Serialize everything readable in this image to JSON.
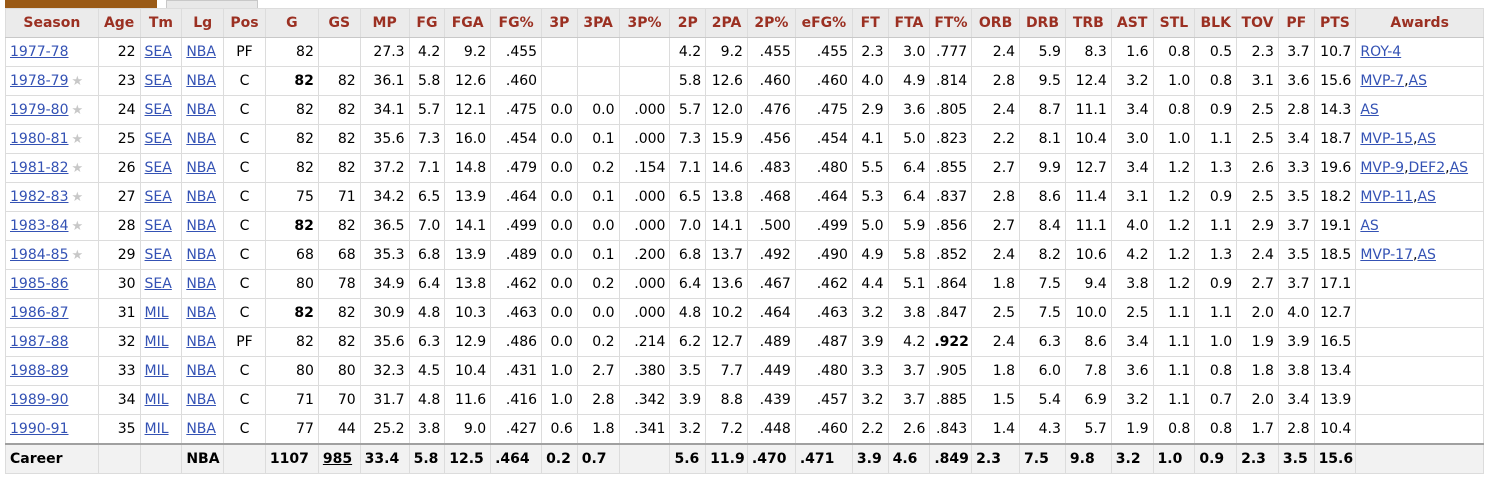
{
  "columns": [
    "Season",
    "Age",
    "Tm",
    "Lg",
    "Pos",
    "G",
    "GS",
    "MP",
    "FG",
    "FGA",
    "FG%",
    "3P",
    "3PA",
    "3P%",
    "2P",
    "2PA",
    "2P%",
    "eFG%",
    "FT",
    "FTA",
    "FT%",
    "ORB",
    "DRB",
    "TRB",
    "AST",
    "STL",
    "BLK",
    "TOV",
    "PF",
    "PTS",
    "Awards"
  ],
  "rows": [
    {
      "season": "1977-78",
      "star": false,
      "age": "22",
      "tm": "SEA",
      "lg": "NBA",
      "pos": "PF",
      "g": "82",
      "gs": "",
      "mp": "27.3",
      "fg": "4.2",
      "fga": "9.2",
      "fg_pct": ".455",
      "p3": "",
      "p3a": "",
      "p3_pct": "",
      "p2": "4.2",
      "p2a": "9.2",
      "p2_pct": ".455",
      "efg": ".455",
      "ft": "2.3",
      "fta": "3.0",
      "ft_pct": ".777",
      "orb": "2.4",
      "drb": "5.9",
      "trb": "8.3",
      "ast": "1.6",
      "stl": "0.8",
      "blk": "0.5",
      "tov": "2.3",
      "pf": "3.7",
      "pts": "10.7",
      "awards": [
        "ROY-4"
      ]
    },
    {
      "season": "1978-79",
      "star": true,
      "age": "23",
      "tm": "SEA",
      "lg": "NBA",
      "pos": "C",
      "g": "82",
      "g_bold": true,
      "gs": "82",
      "mp": "36.1",
      "fg": "5.8",
      "fga": "12.6",
      "fg_pct": ".460",
      "p3": "",
      "p3a": "",
      "p3_pct": "",
      "p2": "5.8",
      "p2a": "12.6",
      "p2_pct": ".460",
      "efg": ".460",
      "ft": "4.0",
      "fta": "4.9",
      "ft_pct": ".814",
      "orb": "2.8",
      "drb": "9.5",
      "trb": "12.4",
      "ast": "3.2",
      "stl": "1.0",
      "blk": "0.8",
      "tov": "3.1",
      "pf": "3.6",
      "pts": "15.6",
      "awards": [
        "MVP-7",
        "AS"
      ]
    },
    {
      "season": "1979-80",
      "star": true,
      "age": "24",
      "tm": "SEA",
      "lg": "NBA",
      "pos": "C",
      "g": "82",
      "gs": "82",
      "mp": "34.1",
      "fg": "5.7",
      "fga": "12.1",
      "fg_pct": ".475",
      "p3": "0.0",
      "p3a": "0.0",
      "p3_pct": ".000",
      "p2": "5.7",
      "p2a": "12.0",
      "p2_pct": ".476",
      "efg": ".475",
      "ft": "2.9",
      "fta": "3.6",
      "ft_pct": ".805",
      "orb": "2.4",
      "drb": "8.7",
      "trb": "11.1",
      "ast": "3.4",
      "stl": "0.8",
      "blk": "0.9",
      "tov": "2.5",
      "pf": "2.8",
      "pts": "14.3",
      "awards": [
        "AS"
      ]
    },
    {
      "season": "1980-81",
      "star": true,
      "age": "25",
      "tm": "SEA",
      "lg": "NBA",
      "pos": "C",
      "g": "82",
      "gs": "82",
      "mp": "35.6",
      "fg": "7.3",
      "fga": "16.0",
      "fg_pct": ".454",
      "p3": "0.0",
      "p3a": "0.1",
      "p3_pct": ".000",
      "p2": "7.3",
      "p2a": "15.9",
      "p2_pct": ".456",
      "efg": ".454",
      "ft": "4.1",
      "fta": "5.0",
      "ft_pct": ".823",
      "orb": "2.2",
      "drb": "8.1",
      "trb": "10.4",
      "ast": "3.0",
      "stl": "1.0",
      "blk": "1.1",
      "tov": "2.5",
      "pf": "3.4",
      "pts": "18.7",
      "awards": [
        "MVP-15",
        "AS"
      ]
    },
    {
      "season": "1981-82",
      "star": true,
      "age": "26",
      "tm": "SEA",
      "lg": "NBA",
      "pos": "C",
      "g": "82",
      "gs": "82",
      "mp": "37.2",
      "fg": "7.1",
      "fga": "14.8",
      "fg_pct": ".479",
      "p3": "0.0",
      "p3a": "0.2",
      "p3_pct": ".154",
      "p2": "7.1",
      "p2a": "14.6",
      "p2_pct": ".483",
      "efg": ".480",
      "ft": "5.5",
      "fta": "6.4",
      "ft_pct": ".855",
      "orb": "2.7",
      "drb": "9.9",
      "trb": "12.7",
      "ast": "3.4",
      "stl": "1.2",
      "blk": "1.3",
      "tov": "2.6",
      "pf": "3.3",
      "pts": "19.6",
      "awards": [
        "MVP-9",
        "DEF2",
        "AS"
      ]
    },
    {
      "season": "1982-83",
      "star": true,
      "age": "27",
      "tm": "SEA",
      "lg": "NBA",
      "pos": "C",
      "g": "75",
      "gs": "71",
      "mp": "34.2",
      "fg": "6.5",
      "fga": "13.9",
      "fg_pct": ".464",
      "p3": "0.0",
      "p3a": "0.1",
      "p3_pct": ".000",
      "p2": "6.5",
      "p2a": "13.8",
      "p2_pct": ".468",
      "efg": ".464",
      "ft": "5.3",
      "fta": "6.4",
      "ft_pct": ".837",
      "orb": "2.8",
      "drb": "8.6",
      "trb": "11.4",
      "ast": "3.1",
      "stl": "1.2",
      "blk": "0.9",
      "tov": "2.5",
      "pf": "3.5",
      "pts": "18.2",
      "awards": [
        "MVP-11",
        "AS"
      ]
    },
    {
      "season": "1983-84",
      "star": true,
      "age": "28",
      "tm": "SEA",
      "lg": "NBA",
      "pos": "C",
      "g": "82",
      "g_bold": true,
      "gs": "82",
      "mp": "36.5",
      "fg": "7.0",
      "fga": "14.1",
      "fg_pct": ".499",
      "p3": "0.0",
      "p3a": "0.0",
      "p3_pct": ".000",
      "p2": "7.0",
      "p2a": "14.1",
      "p2_pct": ".500",
      "efg": ".499",
      "ft": "5.0",
      "fta": "5.9",
      "ft_pct": ".856",
      "orb": "2.7",
      "drb": "8.4",
      "trb": "11.1",
      "ast": "4.0",
      "stl": "1.2",
      "blk": "1.1",
      "tov": "2.9",
      "pf": "3.7",
      "pts": "19.1",
      "awards": [
        "AS"
      ]
    },
    {
      "season": "1984-85",
      "star": true,
      "age": "29",
      "tm": "SEA",
      "lg": "NBA",
      "pos": "C",
      "g": "68",
      "gs": "68",
      "mp": "35.3",
      "fg": "6.8",
      "fga": "13.9",
      "fg_pct": ".489",
      "p3": "0.0",
      "p3a": "0.1",
      "p3_pct": ".200",
      "p2": "6.8",
      "p2a": "13.7",
      "p2_pct": ".492",
      "efg": ".490",
      "ft": "4.9",
      "fta": "5.8",
      "ft_pct": ".852",
      "orb": "2.4",
      "drb": "8.2",
      "trb": "10.6",
      "ast": "4.2",
      "stl": "1.2",
      "blk": "1.3",
      "tov": "2.4",
      "pf": "3.5",
      "pts": "18.5",
      "awards": [
        "MVP-17",
        "AS"
      ]
    },
    {
      "season": "1985-86",
      "star": false,
      "age": "30",
      "tm": "SEA",
      "lg": "NBA",
      "pos": "C",
      "g": "80",
      "gs": "78",
      "mp": "34.9",
      "fg": "6.4",
      "fga": "13.8",
      "fg_pct": ".462",
      "p3": "0.0",
      "p3a": "0.2",
      "p3_pct": ".000",
      "p2": "6.4",
      "p2a": "13.6",
      "p2_pct": ".467",
      "efg": ".462",
      "ft": "4.4",
      "fta": "5.1",
      "ft_pct": ".864",
      "orb": "1.8",
      "drb": "7.5",
      "trb": "9.4",
      "ast": "3.8",
      "stl": "1.2",
      "blk": "0.9",
      "tov": "2.7",
      "pf": "3.7",
      "pts": "17.1",
      "awards": []
    },
    {
      "season": "1986-87",
      "star": false,
      "age": "31",
      "tm": "MIL",
      "lg": "NBA",
      "pos": "C",
      "g": "82",
      "g_bold": true,
      "gs": "82",
      "mp": "30.9",
      "fg": "4.8",
      "fga": "10.3",
      "fg_pct": ".463",
      "p3": "0.0",
      "p3a": "0.0",
      "p3_pct": ".000",
      "p2": "4.8",
      "p2a": "10.2",
      "p2_pct": ".464",
      "efg": ".463",
      "ft": "3.2",
      "fta": "3.8",
      "ft_pct": ".847",
      "orb": "2.5",
      "drb": "7.5",
      "trb": "10.0",
      "ast": "2.5",
      "stl": "1.1",
      "blk": "1.1",
      "tov": "2.0",
      "pf": "4.0",
      "pts": "12.7",
      "awards": []
    },
    {
      "season": "1987-88",
      "star": false,
      "age": "32",
      "tm": "MIL",
      "lg": "NBA",
      "pos": "PF",
      "g": "82",
      "gs": "82",
      "mp": "35.6",
      "fg": "6.3",
      "fga": "12.9",
      "fg_pct": ".486",
      "p3": "0.0",
      "p3a": "0.2",
      "p3_pct": ".214",
      "p2": "6.2",
      "p2a": "12.7",
      "p2_pct": ".489",
      "efg": ".487",
      "ft": "3.9",
      "fta": "4.2",
      "ft_pct": ".922",
      "ft_pct_bold": true,
      "orb": "2.4",
      "drb": "6.3",
      "trb": "8.6",
      "ast": "3.4",
      "stl": "1.1",
      "blk": "1.0",
      "tov": "1.9",
      "pf": "3.9",
      "pts": "16.5",
      "awards": []
    },
    {
      "season": "1988-89",
      "star": false,
      "age": "33",
      "tm": "MIL",
      "lg": "NBA",
      "pos": "C",
      "g": "80",
      "gs": "80",
      "mp": "32.3",
      "fg": "4.5",
      "fga": "10.4",
      "fg_pct": ".431",
      "p3": "1.0",
      "p3a": "2.7",
      "p3_pct": ".380",
      "p2": "3.5",
      "p2a": "7.7",
      "p2_pct": ".449",
      "efg": ".480",
      "ft": "3.3",
      "fta": "3.7",
      "ft_pct": ".905",
      "orb": "1.8",
      "drb": "6.0",
      "trb": "7.8",
      "ast": "3.6",
      "stl": "1.1",
      "blk": "0.8",
      "tov": "1.8",
      "pf": "3.8",
      "pts": "13.4",
      "awards": []
    },
    {
      "season": "1989-90",
      "star": false,
      "age": "34",
      "tm": "MIL",
      "lg": "NBA",
      "pos": "C",
      "g": "71",
      "gs": "70",
      "mp": "31.7",
      "fg": "4.8",
      "fga": "11.6",
      "fg_pct": ".416",
      "p3": "1.0",
      "p3a": "2.8",
      "p3_pct": ".342",
      "p2": "3.9",
      "p2a": "8.8",
      "p2_pct": ".439",
      "efg": ".457",
      "ft": "3.2",
      "fta": "3.7",
      "ft_pct": ".885",
      "orb": "1.5",
      "drb": "5.4",
      "trb": "6.9",
      "ast": "3.2",
      "stl": "1.1",
      "blk": "0.7",
      "tov": "2.0",
      "pf": "3.4",
      "pts": "13.9",
      "awards": []
    },
    {
      "season": "1990-91",
      "star": false,
      "age": "35",
      "tm": "MIL",
      "lg": "NBA",
      "pos": "C",
      "g": "77",
      "gs": "44",
      "mp": "25.2",
      "fg": "3.8",
      "fga": "9.0",
      "fg_pct": ".427",
      "p3": "0.6",
      "p3a": "1.8",
      "p3_pct": ".341",
      "p2": "3.2",
      "p2a": "7.2",
      "p2_pct": ".448",
      "efg": ".460",
      "ft": "2.2",
      "fta": "2.6",
      "ft_pct": ".843",
      "orb": "1.4",
      "drb": "4.3",
      "trb": "5.7",
      "ast": "1.9",
      "stl": "0.8",
      "blk": "0.8",
      "tov": "1.7",
      "pf": "2.8",
      "pts": "10.4",
      "awards": []
    }
  ],
  "career": {
    "season": "Career",
    "age": "",
    "tm": "",
    "lg": "NBA",
    "pos": "",
    "g": "1107",
    "gs": "985",
    "mp": "33.4",
    "fg": "5.8",
    "fga": "12.5",
    "fg_pct": ".464",
    "p3": "0.2",
    "p3a": "0.7",
    "p3_pct": "",
    "p2": "5.6",
    "p2a": "11.9",
    "p2_pct": ".470",
    "efg": ".471",
    "ft": "3.9",
    "fta": "4.6",
    "ft_pct": ".849",
    "orb": "2.3",
    "drb": "7.5",
    "trb": "9.8",
    "ast": "3.2",
    "stl": "1.0",
    "blk": "0.9",
    "tov": "2.3",
    "pf": "3.5",
    "pts": "15.6",
    "awards": ""
  },
  "star_glyph": "★",
  "colors": {
    "header_text": "#9b3022",
    "link": "#3452b4",
    "tab_active": "#9a5a16",
    "header_bg": "#ebebeb"
  }
}
